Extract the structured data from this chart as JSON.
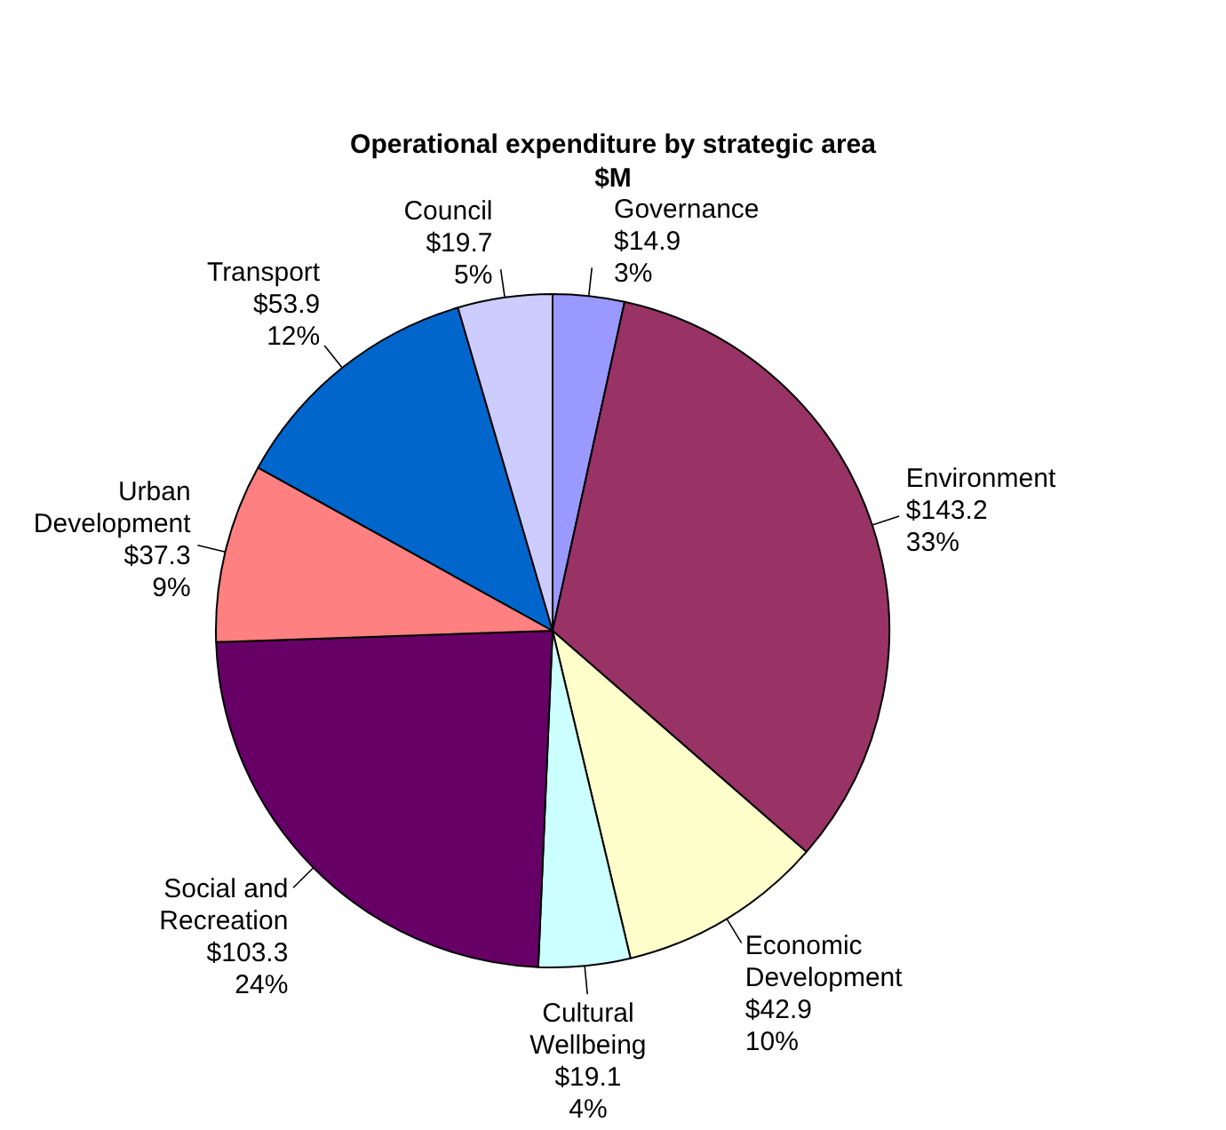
{
  "chart_data": {
    "type": "pie",
    "title": "Operational expenditure by strategic area",
    "subtitle": "$M",
    "categories": [
      "Governance",
      "Environment",
      "Economic Development",
      "Cultural Wellbeing",
      "Social and Recreation",
      "Urban Development",
      "Transport",
      "Council"
    ],
    "values": [
      14.9,
      143.2,
      42.9,
      19.1,
      103.3,
      37.3,
      53.9,
      19.7
    ],
    "value_labels": [
      "$14.9\n3%",
      "$143.2\n33%",
      "$42.9\n10%",
      "$19.1\n4%",
      "$103.3\n24%",
      "$37.3\n9%",
      "$53.9\n12%",
      "$19.7\n5%"
    ],
    "colors": [
      "#9999ff",
      "#993366",
      "#ffffcc",
      "#ccffff",
      "#660066",
      "#ff8080",
      "#0066cc",
      "#ccccff"
    ],
    "legend": false
  }
}
